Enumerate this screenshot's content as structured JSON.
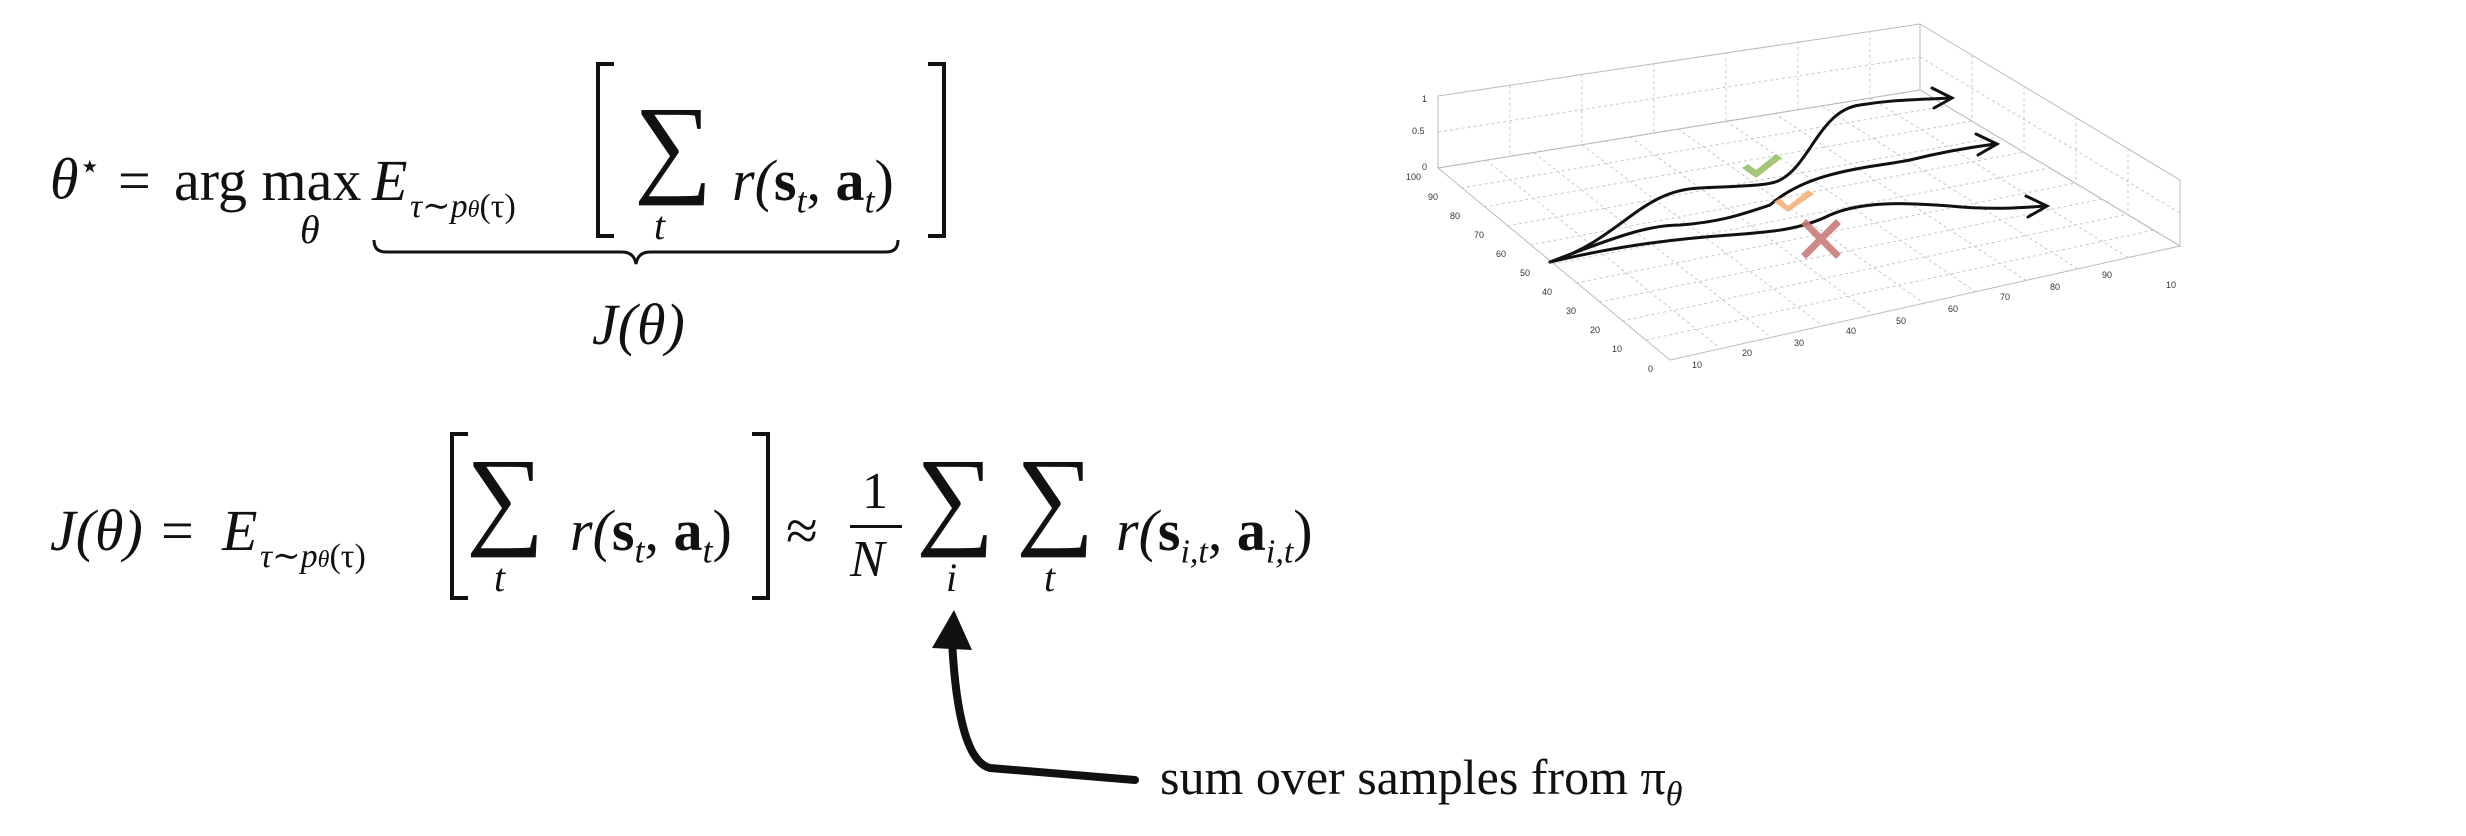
{
  "equation1": {
    "lhs": "θ",
    "lhs_sup": "⋆",
    "equals": "=",
    "argmax": "arg max",
    "argmax_sub": "θ",
    "expectation": "E",
    "expectation_sub_tau": "τ∼p",
    "expectation_sub_theta": "θ",
    "expectation_sub_arg": "(τ)",
    "sum_symbol": "∑",
    "sum_index": "t",
    "reward": "r(",
    "state": "s",
    "state_sub": "t",
    "comma": ", ",
    "action": "a",
    "action_sub": "t",
    "close": ")"
  },
  "underbrace_label": "J(θ)",
  "equation2": {
    "lhs": "J(θ) =",
    "expectation": "E",
    "expectation_sub_tau": "τ∼p",
    "expectation_sub_theta": "θ",
    "expectation_sub_arg": "(τ)",
    "sum_symbol": "∑",
    "sum_index_t": "t",
    "reward": "r(",
    "state": "s",
    "state_sub": "t",
    "comma": ", ",
    "action": "a",
    "action_sub": "t",
    "close": ")",
    "approx": "≈",
    "frac_num": "1",
    "frac_den": "N",
    "sum_index_i": "i",
    "reward2": "r(",
    "state2_sub": "i,t",
    "action2_sub": "i,t"
  },
  "annotation": {
    "text": "sum over samples from π",
    "pi_sub": "θ"
  },
  "plot3d": {
    "z_ticks": [
      "1",
      "0.5",
      "0"
    ],
    "y_ticks": [
      "100",
      "90",
      "80",
      "70",
      "60",
      "50",
      "40",
      "30",
      "20",
      "10",
      "0"
    ],
    "x_ticks": [
      "10",
      "20",
      "30",
      "40",
      "50",
      "60",
      "70",
      "80",
      "90",
      "10"
    ],
    "markers": [
      {
        "name": "good",
        "color": "#9bbf6a"
      },
      {
        "name": "okay",
        "color": "#f2b27a"
      },
      {
        "name": "bad",
        "color": "#c97c7c"
      }
    ]
  }
}
